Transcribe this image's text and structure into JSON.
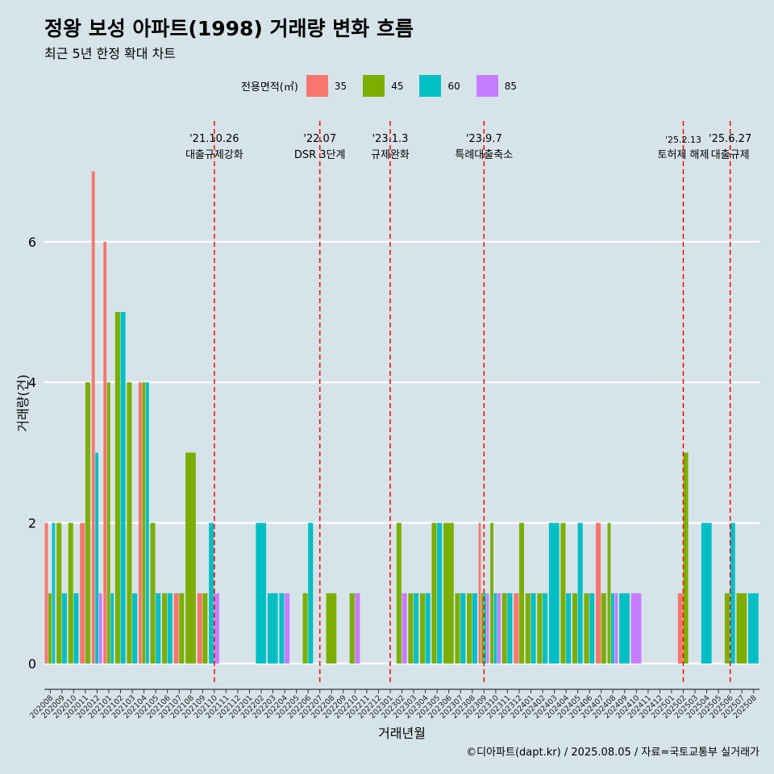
{
  "title": "정왕 보성 아파트(1998) 거래량 변화 흐름",
  "subtitle": "최근 5년 한정 확대 차트",
  "caption": "©디아파트(dapt.kr) / 2025.08.05 / 자료=국토교통부 실거래가",
  "legend": {
    "title": "전용면적(㎡)",
    "items": [
      {
        "label": "35",
        "color": "#f8766d"
      },
      {
        "label": "45",
        "color": "#7cae00"
      },
      {
        "label": "60",
        "color": "#00bfc4"
      },
      {
        "label": "85",
        "color": "#c77cff"
      }
    ]
  },
  "chart_data": {
    "type": "bar",
    "xlabel": "거래년월",
    "ylabel": "거래량(건)",
    "ylim": [
      0,
      7
    ],
    "yticks": [
      0,
      2,
      4,
      6
    ],
    "grid": true,
    "legend_position": "top",
    "categories": [
      "202008",
      "202009",
      "202010",
      "202011",
      "202012",
      "202101",
      "202102",
      "202103",
      "202104",
      "202105",
      "202106",
      "202107",
      "202108",
      "202109",
      "202110",
      "202111",
      "202112",
      "202201",
      "202202",
      "202203",
      "202204",
      "202205",
      "202206",
      "202207",
      "202208",
      "202209",
      "202210",
      "202211",
      "202212",
      "202301",
      "202302",
      "202303",
      "202304",
      "202305",
      "202306",
      "202307",
      "202308",
      "202309",
      "202310",
      "202311",
      "202312",
      "202401",
      "202402",
      "202403",
      "202404",
      "202405",
      "202406",
      "202407",
      "202408",
      "202409",
      "202410",
      "202411",
      "202412",
      "202501",
      "202502",
      "202503",
      "202504",
      "202505",
      "202506",
      "202507",
      "202508"
    ],
    "series": [
      {
        "name": "35",
        "color": "#f8766d",
        "values": {
          "202008": 2,
          "202011": 2,
          "202012": 7,
          "202101": 6,
          "202104": 4,
          "202107": 1,
          "202109": 1,
          "202309": 2,
          "202312": 1,
          "202407": 2,
          "202502": 1
        }
      },
      {
        "name": "45",
        "color": "#7cae00",
        "values": {
          "202008": 1,
          "202009": 2,
          "202010": 2,
          "202011": 4,
          "202101": 4,
          "202102": 5,
          "202103": 4,
          "202104": 4,
          "202105": 2,
          "202106": 1,
          "202107": 1,
          "202108": 3,
          "202109": 1,
          "202206": 1,
          "202208": 1,
          "202210": 1,
          "202302": 2,
          "202303": 1,
          "202304": 1,
          "202305": 2,
          "202306": 2,
          "202307": 1,
          "202308": 1,
          "202309": 1,
          "202310": 2,
          "202311": 1,
          "202312": 2,
          "202401": 1,
          "202402": 1,
          "202404": 2,
          "202405": 1,
          "202406": 1,
          "202407": 1,
          "202408": 2,
          "202502": 3,
          "202506": 1,
          "202507": 1
        }
      },
      {
        "name": "60",
        "color": "#00bfc4",
        "values": {
          "202008": 2,
          "202009": 1,
          "202010": 1,
          "202012": 3,
          "202101": 1,
          "202102": 5,
          "202103": 1,
          "202104": 4,
          "202105": 1,
          "202106": 1,
          "202110": 2,
          "202202": 2,
          "202203": 1,
          "202204": 1,
          "202206": 2,
          "202303": 1,
          "202304": 1,
          "202305": 2,
          "202307": 1,
          "202308": 1,
          "202309": 1,
          "202310": 1,
          "202311": 1,
          "202401": 1,
          "202402": 1,
          "202403": 2,
          "202404": 1,
          "202405": 2,
          "202406": 1,
          "202408": 1,
          "202409": 1,
          "202504": 2,
          "202506": 2,
          "202508": 1
        }
      },
      {
        "name": "85",
        "color": "#c77cff",
        "values": {
          "202012": 1,
          "202110": 1,
          "202204": 1,
          "202210": 1,
          "202302": 1,
          "202309": 1,
          "202310": 1,
          "202408": 1,
          "202410": 1
        }
      }
    ],
    "annotations": [
      {
        "x": "202110",
        "date": "'21.10.26",
        "label": "대출규제강화"
      },
      {
        "x": "202207",
        "date": "'22.07",
        "label": "DSR 3단계"
      },
      {
        "x": "202301",
        "date": "'23.1.3",
        "label": "규제완화"
      },
      {
        "x": "202309",
        "date": "'23.9.7",
        "label": "특례대출축소"
      },
      {
        "x": "202502",
        "date": "'25.2.13",
        "label": "토허제 해제"
      },
      {
        "x": "202506",
        "date": "'25.6.27",
        "label": "대출규제"
      }
    ]
  }
}
